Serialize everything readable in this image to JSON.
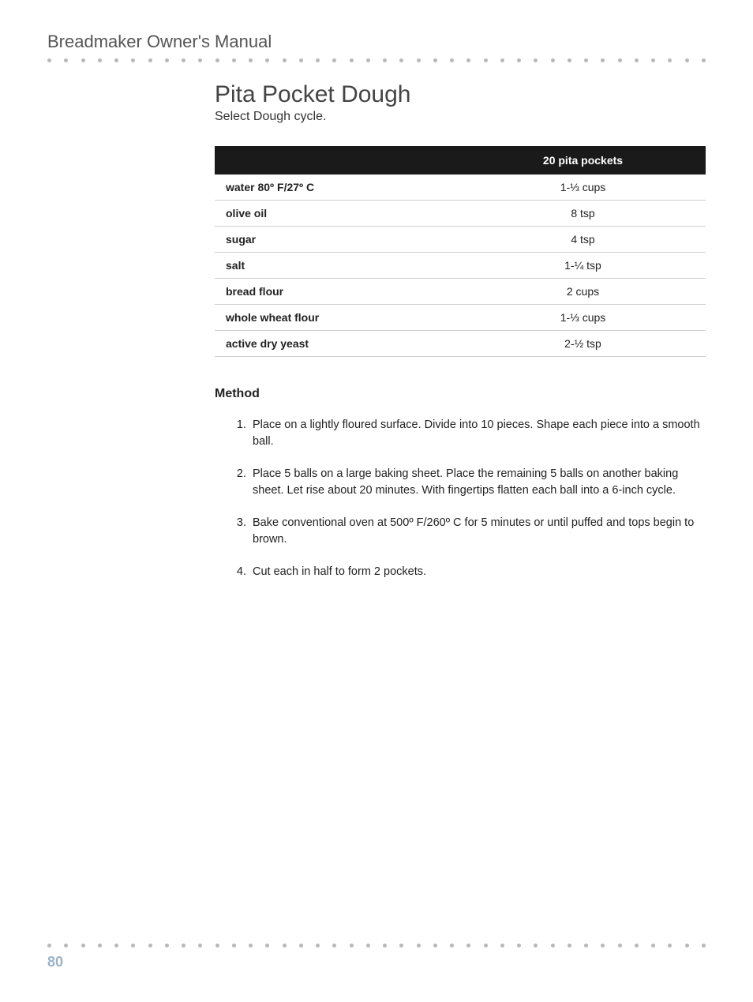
{
  "header": {
    "title": "Breadmaker Owner's Manual"
  },
  "recipe": {
    "title": "Pita Pocket Dough",
    "subtitle": "Select Dough cycle.",
    "table": {
      "columns": [
        "",
        "20 pita pockets"
      ],
      "rows": [
        [
          "water 80º F/27º C",
          "1-⅓ cups"
        ],
        [
          "olive oil",
          "8 tsp"
        ],
        [
          "sugar",
          "4 tsp"
        ],
        [
          "salt",
          "1-¼ tsp"
        ],
        [
          "bread flour",
          "2 cups"
        ],
        [
          "whole wheat flour",
          "1-⅓ cups"
        ],
        [
          "active dry yeast",
          "2-½ tsp"
        ]
      ]
    },
    "method_heading": "Method",
    "method_steps": [
      "Place on a lightly floured surface. Divide into 10 pieces. Shape each piece into a smooth ball.",
      "Place 5 balls on a large baking sheet. Place the remaining 5 balls on another baking sheet. Let rise about 20 minutes. With fingertips flatten each ball into a 6-inch cycle.",
      "Bake conventional oven at 500º F/260º C for 5 minutes or until puffed and tops begin to brown.",
      "Cut each in half to form 2 pockets."
    ]
  },
  "footer": {
    "page_number": "80"
  },
  "style": {
    "dot_count": 40,
    "dot_color": "#b8b8b8",
    "header_color": "#555555",
    "title_color": "#444444",
    "text_color": "#222222",
    "table_header_bg": "#1a1a1a",
    "table_header_fg": "#ffffff",
    "row_border_color": "#cfcfcf",
    "page_number_color": "#9cb2c9",
    "background_color": "#ffffff",
    "title_fontsize": 30,
    "header_fontsize": 22,
    "body_fontsize": 14.5
  }
}
